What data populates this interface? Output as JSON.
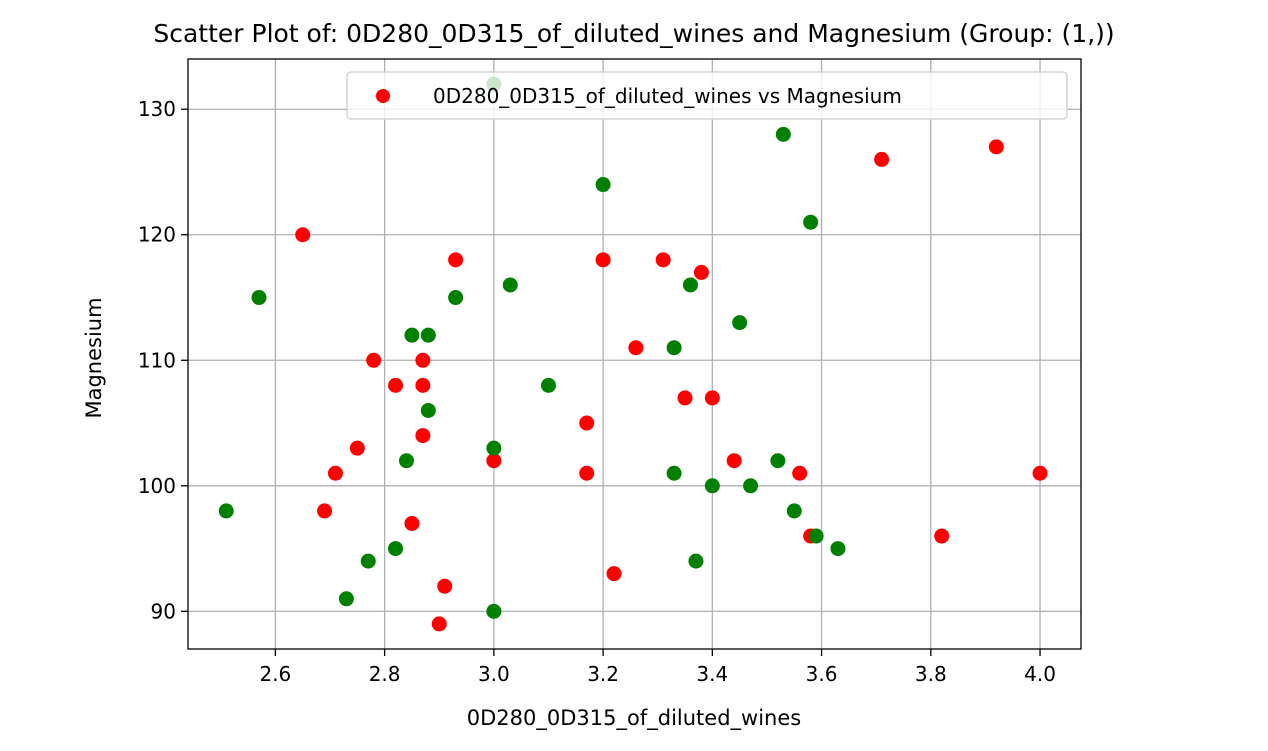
{
  "chart_data": {
    "type": "scatter",
    "title": "Scatter Plot of: 0D280_0D315_of_diluted_wines and Magnesium (Group: (1,))",
    "xlabel": "0D280_0D315_of_diluted_wines",
    "ylabel": "Magnesium",
    "xlim": [
      2.44,
      4.075
    ],
    "ylim": [
      87,
      134
    ],
    "xticks": [
      "2.6",
      "2.8",
      "3.0",
      "3.2",
      "3.4",
      "3.6",
      "3.8",
      "4.0"
    ],
    "yticks": [
      "90",
      "100",
      "110",
      "120",
      "130"
    ],
    "grid": true,
    "legend_position": "top-right",
    "colors": {
      "red": "#ff0000",
      "green": "#008000",
      "grid": "#b0b0b0"
    },
    "series": [
      {
        "name": "0D280_0D315_of_diluted_wines vs Magnesium",
        "color": "#ff0000",
        "points": [
          [
            2.65,
            120
          ],
          [
            2.69,
            98
          ],
          [
            2.71,
            101
          ],
          [
            2.75,
            103
          ],
          [
            2.78,
            110
          ],
          [
            2.82,
            108
          ],
          [
            2.85,
            97
          ],
          [
            2.87,
            110
          ],
          [
            2.87,
            108
          ],
          [
            2.87,
            104
          ],
          [
            2.9,
            89
          ],
          [
            2.91,
            92
          ],
          [
            2.93,
            118
          ],
          [
            3.0,
            102
          ],
          [
            3.17,
            105
          ],
          [
            3.17,
            101
          ],
          [
            3.2,
            118
          ],
          [
            3.22,
            93
          ],
          [
            3.26,
            111
          ],
          [
            3.31,
            118
          ],
          [
            3.35,
            107
          ],
          [
            3.38,
            117
          ],
          [
            3.4,
            107
          ],
          [
            3.44,
            102
          ],
          [
            3.56,
            101
          ],
          [
            3.58,
            96
          ],
          [
            3.71,
            126
          ],
          [
            3.82,
            96
          ],
          [
            3.92,
            127
          ],
          [
            4.0,
            101
          ]
        ]
      },
      {
        "color": "#008000",
        "points": [
          [
            2.51,
            98
          ],
          [
            2.57,
            115
          ],
          [
            2.73,
            91
          ],
          [
            2.77,
            94
          ],
          [
            2.82,
            95
          ],
          [
            2.84,
            102
          ],
          [
            2.85,
            112
          ],
          [
            2.88,
            112
          ],
          [
            2.88,
            106
          ],
          [
            2.93,
            115
          ],
          [
            3.0,
            132
          ],
          [
            3.0,
            103
          ],
          [
            3.0,
            90
          ],
          [
            3.03,
            116
          ],
          [
            3.1,
            108
          ],
          [
            3.2,
            124
          ],
          [
            3.33,
            111
          ],
          [
            3.33,
            101
          ],
          [
            3.36,
            116
          ],
          [
            3.37,
            94
          ],
          [
            3.4,
            100
          ],
          [
            3.45,
            113
          ],
          [
            3.47,
            100
          ],
          [
            3.52,
            102
          ],
          [
            3.53,
            128
          ],
          [
            3.55,
            98
          ],
          [
            3.58,
            121
          ],
          [
            3.59,
            96
          ],
          [
            3.63,
            95
          ]
        ]
      }
    ]
  }
}
